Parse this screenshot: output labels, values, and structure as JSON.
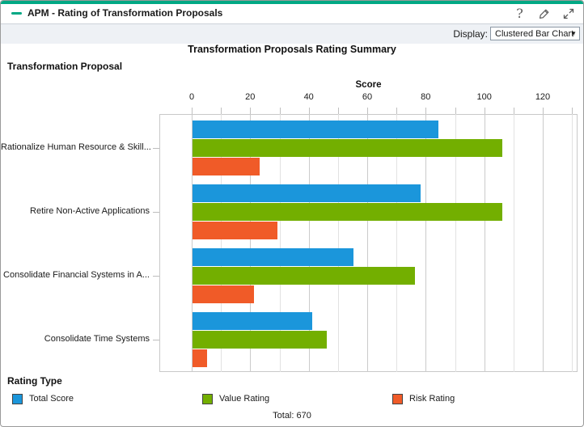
{
  "window": {
    "title": "APM - Rating of Transformation Proposals",
    "accent_color": "#00A884",
    "help_glyph": "?",
    "titlebar_icons": [
      "collapse-icon",
      "help-icon",
      "edit-icon",
      "expand-icon"
    ]
  },
  "toolbar": {
    "display_label": "Display:",
    "display_value": "Clustered Bar Chart",
    "caret_glyph": "▼"
  },
  "chart_data": {
    "type": "bar",
    "orientation": "horizontal",
    "title": "Transformation Proposals Rating Summary",
    "category_axis_label": "Transformation Proposal",
    "value_axis_label": "Score",
    "categories": [
      "Rationalize Human Resource & Skill...",
      "Retire Non-Active Applications",
      "Consolidate Financial Systems in A...",
      "Consolidate Time Systems"
    ],
    "series": [
      {
        "name": "Total Score",
        "color": "#1B96DB",
        "values": [
          84,
          78,
          55,
          41
        ]
      },
      {
        "name": "Value Rating",
        "color": "#73AF00",
        "values": [
          106,
          106,
          76,
          46
        ]
      },
      {
        "name": "Risk Rating",
        "color": "#F05B28",
        "values": [
          23,
          29,
          21,
          5
        ]
      }
    ],
    "xlim": [
      0,
      130
    ],
    "ticks": [
      0,
      20,
      40,
      60,
      80,
      100,
      120
    ],
    "minor_tick_step": 10,
    "grid": true,
    "legend_title": "Rating Type",
    "legend_position": "bottom"
  },
  "footer": {
    "total_label": "Total: 670"
  }
}
